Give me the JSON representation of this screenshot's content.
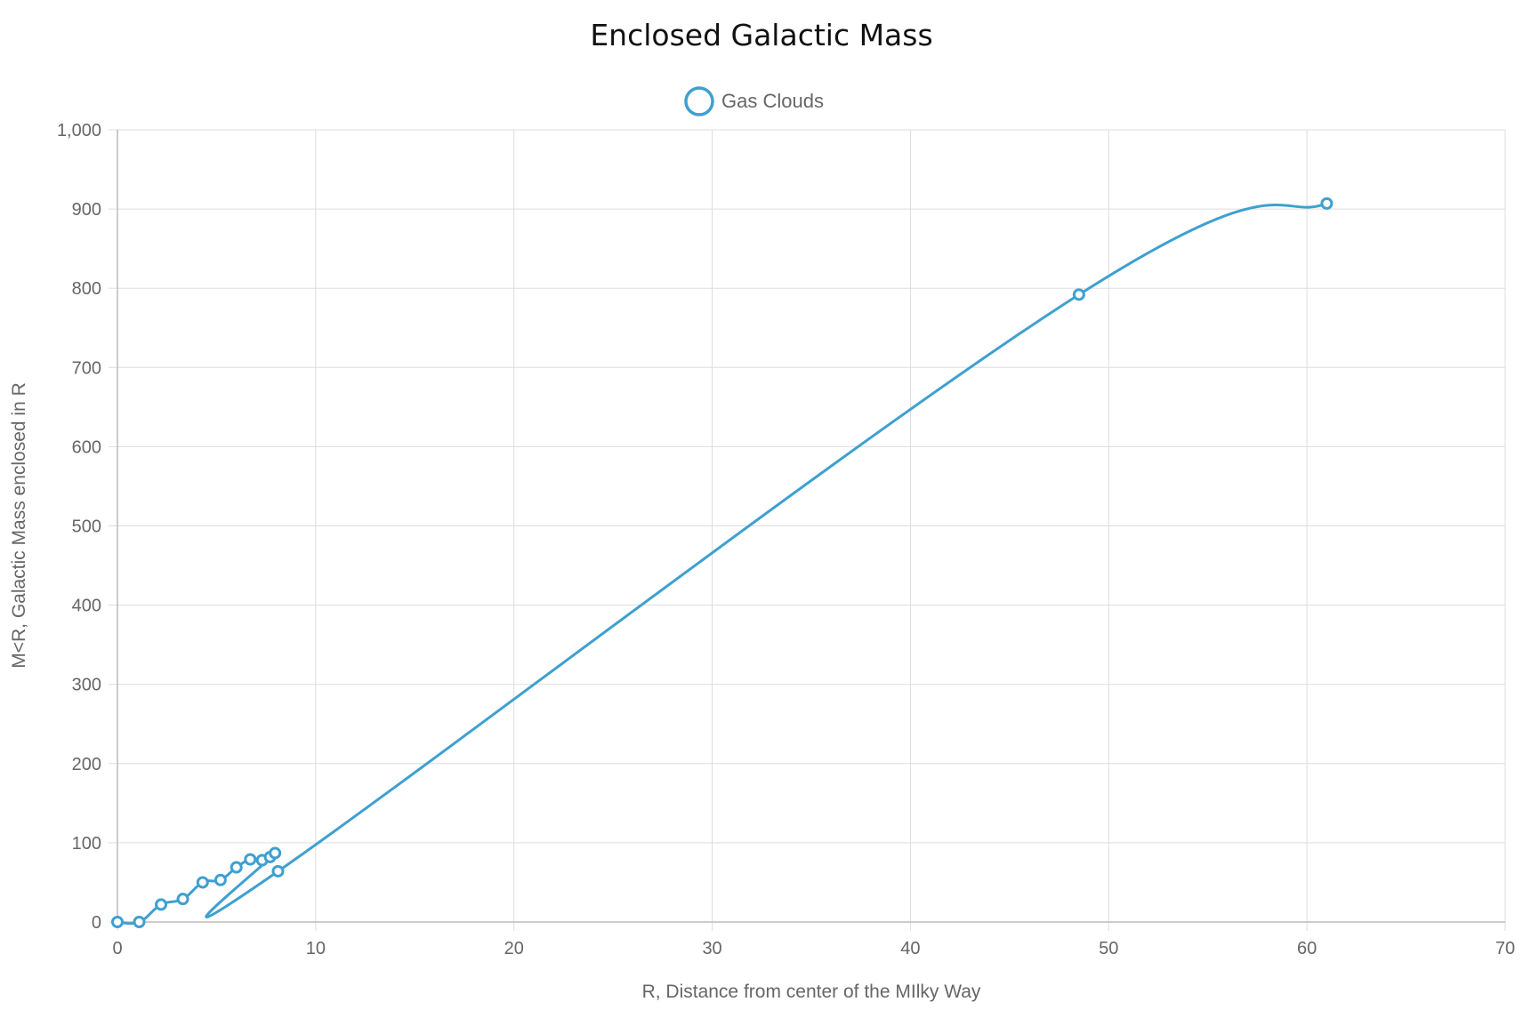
{
  "chart_data": {
    "type": "line",
    "title": "Enclosed Galactic Mass",
    "xlabel": "R, Distance from center of the MIlky Way",
    "ylabel": "M<R, Galactic Mass enclosed in R",
    "xlim": [
      0,
      70
    ],
    "ylim": [
      0,
      1000
    ],
    "x_ticks": [
      0,
      10,
      20,
      30,
      40,
      50,
      60,
      70
    ],
    "y_ticks": [
      0,
      100,
      200,
      300,
      400,
      500,
      600,
      700,
      800,
      900,
      1000
    ],
    "x_tick_labels": [
      "0",
      "10",
      "20",
      "30",
      "40",
      "50",
      "60",
      "70"
    ],
    "y_tick_labels": [
      "0",
      "100",
      "200",
      "300",
      "400",
      "500",
      "600",
      "700",
      "800",
      "900",
      "1,000"
    ],
    "grid": true,
    "legend_position": "top-center",
    "series": [
      {
        "name": "Gas Clouds",
        "color": "#3ea0d0",
        "x": [
          0,
          1.1,
          2.2,
          3.3,
          4.3,
          5.2,
          6.0,
          6.7,
          7.3,
          7.7,
          7.95,
          8.1,
          48.5,
          61.0
        ],
        "y": [
          0,
          0,
          22,
          29,
          50,
          53,
          69,
          79,
          78,
          82,
          87,
          64,
          792,
          907
        ]
      }
    ]
  }
}
